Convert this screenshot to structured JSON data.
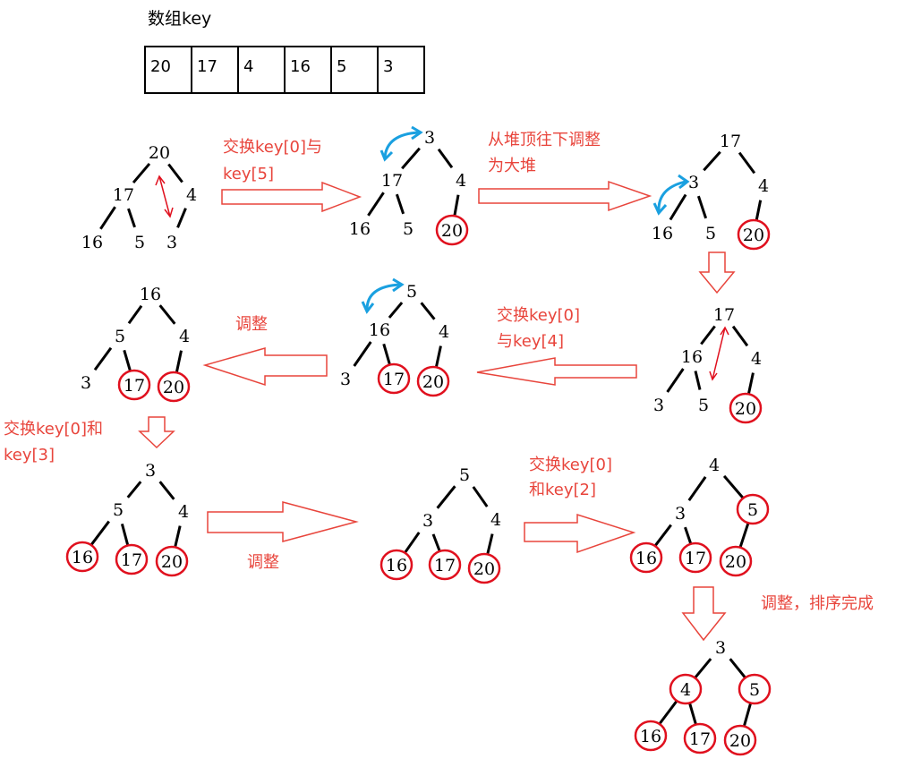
{
  "array": {
    "label": "数组key",
    "cells": [
      "20",
      "17",
      "4",
      "16",
      "5",
      "3"
    ]
  },
  "steps": [
    {
      "name": "tree-1",
      "nodes": [
        "20",
        "17",
        "4",
        "16",
        "5",
        "3"
      ],
      "sorted": []
    },
    {
      "name": "tree-2",
      "nodes": [
        "3",
        "17",
        "4",
        "16",
        "5",
        "20"
      ],
      "sorted": [
        "20"
      ]
    },
    {
      "name": "tree-3",
      "nodes": [
        "17",
        "3",
        "4",
        "16",
        "5",
        "20"
      ],
      "sorted": [
        "20"
      ]
    },
    {
      "name": "tree-4",
      "nodes": [
        "17",
        "16",
        "4",
        "3",
        "5",
        "20"
      ],
      "sorted": [
        "20"
      ]
    },
    {
      "name": "tree-5",
      "nodes": [
        "5",
        "16",
        "4",
        "3",
        "17",
        "20"
      ],
      "sorted": [
        "17",
        "20"
      ]
    },
    {
      "name": "tree-6",
      "nodes": [
        "16",
        "5",
        "4",
        "3",
        "17",
        "20"
      ],
      "sorted": [
        "17",
        "20"
      ]
    },
    {
      "name": "tree-7",
      "nodes": [
        "3",
        "5",
        "4",
        "16",
        "17",
        "20"
      ],
      "sorted": [
        "16",
        "17",
        "20"
      ]
    },
    {
      "name": "tree-8",
      "nodes": [
        "5",
        "3",
        "4",
        "16",
        "17",
        "20"
      ],
      "sorted": [
        "16",
        "17",
        "20"
      ]
    },
    {
      "name": "tree-9",
      "nodes": [
        "4",
        "3",
        "5",
        "16",
        "17",
        "20"
      ],
      "sorted": [
        "5",
        "16",
        "17",
        "20"
      ]
    },
    {
      "name": "tree-10",
      "nodes": [
        "3",
        "4",
        "5",
        "16",
        "17",
        "20"
      ],
      "sorted": [
        "4",
        "5",
        "16",
        "17",
        "20"
      ]
    }
  ],
  "annotations": {
    "swap_0_5_line1": "交换key[0]与",
    "swap_0_5_line2": "key[5]",
    "heapify_line1": "从堆顶往下调整",
    "heapify_line2": "为大堆",
    "swap_0_4_line1": "交换key[0]",
    "swap_0_4_line2": "与key[4]",
    "adjust_1": "调整",
    "swap_0_3_line1": "交换key[0]和",
    "swap_0_3_line2": "key[3]",
    "adjust_2": "调整",
    "swap_0_2_line1": "交换key[0]",
    "swap_0_2_line2": "和key[2]",
    "done": "调整，排序完成"
  },
  "colors": {
    "annotation": "#e8453c",
    "sorted_ring": "#e0101e",
    "rotate_arrow": "#1aa0e0",
    "node_text": "#000000"
  }
}
